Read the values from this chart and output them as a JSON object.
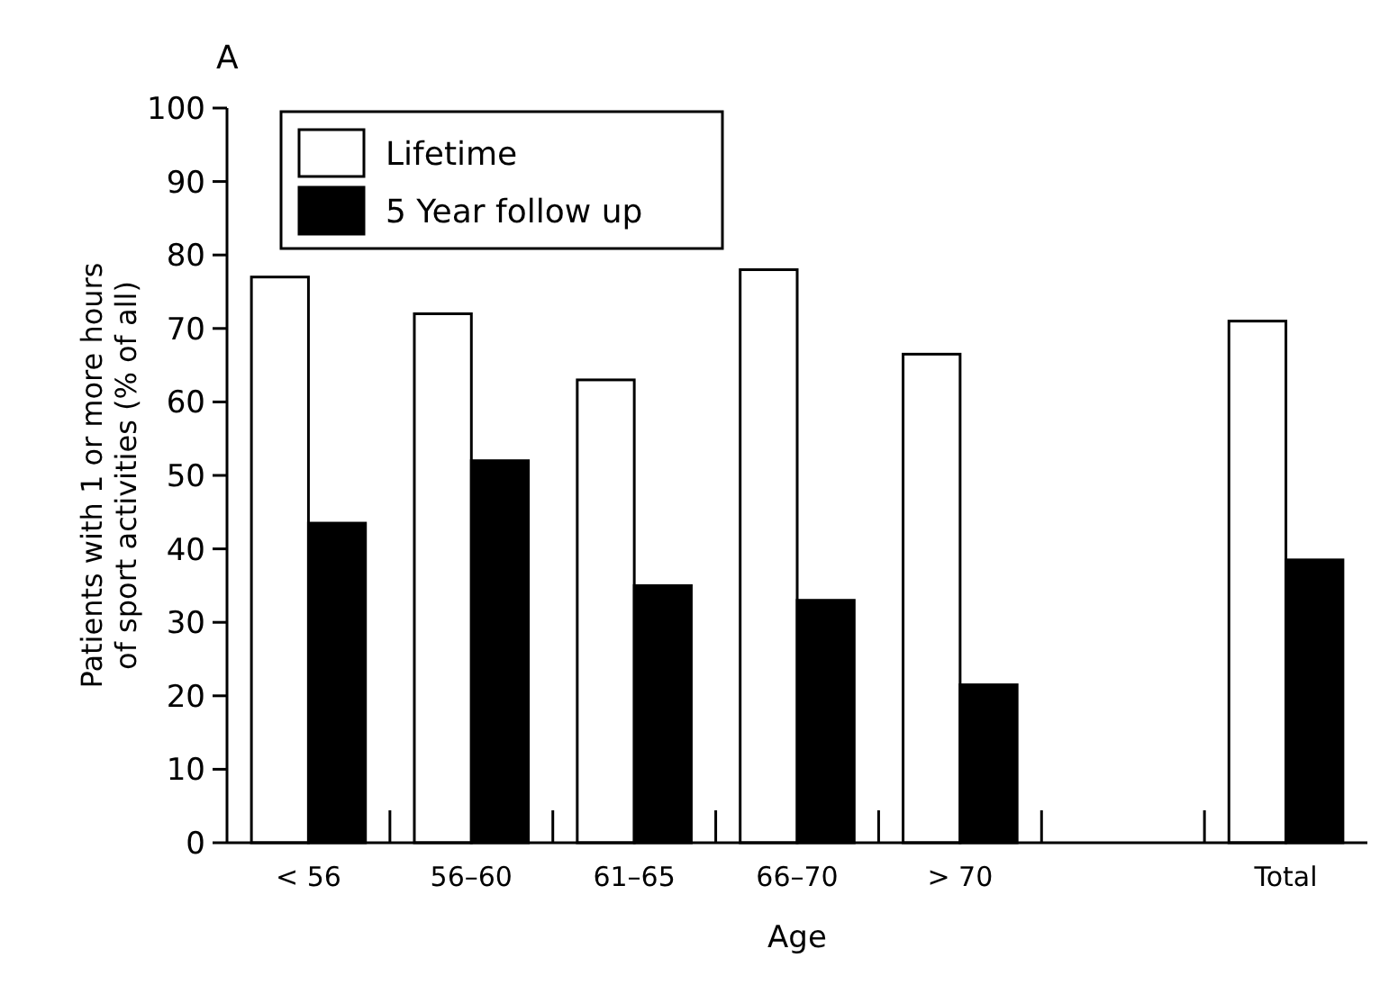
{
  "chart_data": {
    "type": "bar",
    "title": "A",
    "xlabel": "Age",
    "ylabel": "Patients with 1 or more hours of sport activities (% of all)",
    "categories": [
      "< 56",
      "56–60",
      "61–65",
      "66–70",
      "> 70",
      null,
      "Total"
    ],
    "series": [
      {
        "name": "Lifetime",
        "color": "#ffffff",
        "values": [
          77,
          72,
          63,
          78,
          66.5,
          null,
          71
        ]
      },
      {
        "name": "5 Year follow up",
        "color": "#000000",
        "values": [
          43.5,
          52,
          35,
          33,
          21.5,
          null,
          38.5
        ]
      }
    ],
    "ylim": [
      0,
      100
    ],
    "yticks": [
      0,
      10,
      20,
      30,
      40,
      50,
      60,
      70,
      80,
      90,
      100
    ],
    "grid": false,
    "legend": "top left"
  }
}
